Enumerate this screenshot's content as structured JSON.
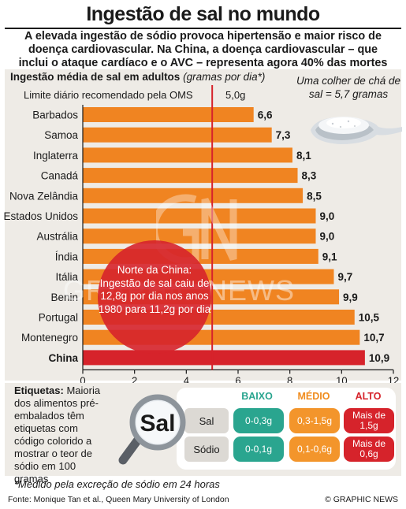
{
  "title": "Ingestão de sal no mundo",
  "subtitle": "A elevada ingestão de sódio provoca hipertensão e maior risco de doença cardiovascular. Na China, a doença cardiovascular – que inclui o ataque cardíaco e o AVC – representa agora 40% das mortes",
  "spoon_note": "Uma colher de chá de sal = 5,7 gramas",
  "callout": "Norte da China: Ingestão de sal caiu de 12,8g por dia nos anos 1980 para 11,2g por dia",
  "watermark": "GRAPHIC NEWS",
  "chart_data": {
    "type": "bar",
    "orientation": "horizontal",
    "ylabel": "Ingestão média de sal em adultos",
    "ylabel_unit": "(gramas por dia*)",
    "reference_line": {
      "label": "Limite diário recomendado pela OMS",
      "value_label": "5,0g",
      "value": 5.0
    },
    "categories": [
      "Barbados",
      "Samoa",
      "Inglaterra",
      "Canadá",
      "Nova Zelândia",
      "Estados Unidos",
      "Austrália",
      "Índia",
      "Itália",
      "Benin",
      "Portugal",
      "Montenegro",
      "China"
    ],
    "values": [
      6.6,
      7.3,
      8.1,
      8.3,
      8.5,
      9.0,
      9.0,
      9.1,
      9.7,
      9.9,
      10.5,
      10.7,
      10.9
    ],
    "value_labels": [
      "6,6",
      "7,3",
      "8,1",
      "8,3",
      "8,5",
      "9,0",
      "9,0",
      "9,1",
      "9,7",
      "9,9",
      "10,5",
      "10,7",
      "10,9"
    ],
    "highlight": "China",
    "xlim": [
      0,
      12
    ],
    "xticks": [
      "0",
      "2",
      "4",
      "6",
      "8",
      "10",
      "12"
    ],
    "colors": {
      "bar": "#f08421",
      "highlight": "#d6232b",
      "reference": "#d6232b"
    }
  },
  "labels_section": {
    "heading": "Etiquetas:",
    "text": " Maioria dos alimentos pré-embalados têm etiquetas com código colorido a mostrar o teor de sódio em 100 gramas",
    "magnifier_word": "Sal",
    "columns": [
      "BAIXO",
      "MÉDIO",
      "ALTO"
    ],
    "rows": [
      {
        "name": "Sal",
        "low": "0-0,3g",
        "medium": "0,3-1,5g",
        "high": "Mais de 1,5g"
      },
      {
        "name": "Sódio",
        "low": "0-0,1g",
        "medium": "0,1-0,6g",
        "high": "Mais de 0,6g"
      }
    ],
    "colors": {
      "low": "#2aa58f",
      "medium": "#f3952b",
      "high": "#d6232b"
    }
  },
  "footnote": "*Medido pela excreção de sódio em 24 horas",
  "source": "Fonte: Monique Tan et al., Queen Mary University of London",
  "credit": "© GRAPHIC NEWS"
}
